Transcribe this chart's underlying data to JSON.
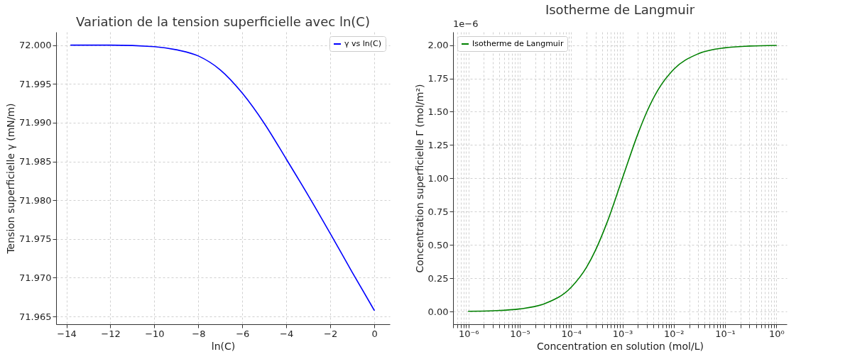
{
  "chart_data": [
    {
      "type": "line",
      "title": "Variation de la tension superficielle avec ln(C)",
      "xlabel": "ln(C)",
      "ylabel": "Tension superficielle γ (mN/m)",
      "series": [
        {
          "name": "γ vs ln(C)",
          "color": "#0000ff",
          "x": [
            -13.8,
            -12,
            -10,
            -9,
            -8,
            -7,
            -6,
            -5,
            -4,
            -3,
            -2,
            -1,
            0
          ],
          "values": [
            72.0,
            72.0,
            71.9998,
            71.9994,
            71.9986,
            71.9968,
            71.9938,
            71.9899,
            71.9853,
            71.9806,
            71.9757,
            71.9707,
            71.9658
          ]
        }
      ],
      "xlim": [
        -14.47,
        0.71
      ],
      "ylim": [
        71.964,
        72.0017
      ],
      "xticks": [
        {
          "value": -14,
          "label": "−14"
        },
        {
          "value": -12,
          "label": "−12"
        },
        {
          "value": -10,
          "label": "−10"
        },
        {
          "value": -8,
          "label": "−8"
        },
        {
          "value": -6,
          "label": "−6"
        },
        {
          "value": -4,
          "label": "−4"
        },
        {
          "value": -2,
          "label": "−2"
        },
        0
      ],
      "yticks": [
        {
          "value": 71.965,
          "label": "71.965"
        },
        {
          "value": 71.97,
          "label": "71.970"
        },
        {
          "value": 71.975,
          "label": "71.975"
        },
        {
          "value": 71.98,
          "label": "71.980"
        },
        {
          "value": 71.985,
          "label": "71.985"
        },
        {
          "value": 71.99,
          "label": "71.990"
        },
        {
          "value": 71.995,
          "label": "71.995"
        },
        {
          "value": 72.0,
          "label": "72.000"
        }
      ],
      "grid": true,
      "legend": "top right",
      "line_style": "solid"
    },
    {
      "type": "line",
      "title": "Isotherme de Langmuir",
      "xlabel": "Concentration en solution (mol/L)",
      "ylabel": "Concentration superficielle Γ (mol/m²)",
      "annotations": [
        "1e−6"
      ],
      "series": [
        {
          "name": "Isotherme de Langmuir",
          "color": "#008000",
          "x": [
            1e-06,
            3e-06,
            1e-05,
            3e-05,
            0.0001,
            0.0002,
            0.0003,
            0.0005,
            0.001,
            0.002,
            0.003,
            0.005,
            0.01,
            0.03,
            0.1,
            0.3,
            1
          ],
          "values": [
            0.002,
            0.006,
            0.02,
            0.058,
            0.182,
            0.333,
            0.462,
            0.667,
            1.0,
            1.333,
            1.5,
            1.667,
            1.818,
            1.935,
            1.98,
            1.993,
            1.998
          ]
        }
      ],
      "log": "x",
      "xlim": [
        5e-07,
        1.6
      ],
      "ylim": [
        -0.095,
        2.099
      ],
      "xticks": [
        {
          "value": 1e-06,
          "label": "10⁻⁶"
        },
        {
          "value": 1e-05,
          "label": "10⁻⁵"
        },
        {
          "value": 0.0001,
          "label": "10⁻⁴"
        },
        {
          "value": 0.001,
          "label": "10⁻³"
        },
        {
          "value": 0.01,
          "label": "10⁻²"
        },
        {
          "value": 0.1,
          "label": "10⁻¹"
        },
        {
          "value": 1,
          "label": "10⁰"
        },
        {
          "value": 5e-07,
          "label": null
        },
        {
          "value": 6e-07,
          "label": null
        },
        {
          "value": 7e-07,
          "label": null
        },
        {
          "value": 8e-07,
          "label": null
        },
        {
          "value": 9e-07,
          "label": null
        },
        {
          "value": 2e-06,
          "label": null
        },
        {
          "value": 3e-06,
          "label": null
        },
        {
          "value": 4e-06,
          "label": null
        },
        {
          "value": 5e-06,
          "label": null
        },
        {
          "value": 6e-06,
          "label": null
        },
        {
          "value": 7e-06,
          "label": null
        },
        {
          "value": 8e-06,
          "label": null
        },
        {
          "value": 9e-06,
          "label": null
        },
        {
          "value": 2e-05,
          "label": null
        },
        {
          "value": 3e-05,
          "label": null
        },
        {
          "value": 4e-05,
          "label": null
        },
        {
          "value": 5e-05,
          "label": null
        },
        {
          "value": 6e-05,
          "label": null
        },
        {
          "value": 7e-05,
          "label": null
        },
        {
          "value": 8e-05,
          "label": null
        },
        {
          "value": 9e-05,
          "label": null
        },
        {
          "value": 0.0002,
          "label": null
        },
        {
          "value": 0.0003,
          "label": null
        },
        {
          "value": 0.0004,
          "label": null
        },
        {
          "value": 0.0005,
          "label": null
        },
        {
          "value": 0.0006,
          "label": null
        },
        {
          "value": 0.0007,
          "label": null
        },
        {
          "value": 0.0008,
          "label": null
        },
        {
          "value": 0.0009,
          "label": null
        },
        {
          "value": 0.002,
          "label": null
        },
        {
          "value": 0.003,
          "label": null
        },
        {
          "value": 0.004,
          "label": null
        },
        {
          "value": 0.005,
          "label": null
        },
        {
          "value": 0.006,
          "label": null
        },
        {
          "value": 0.007,
          "label": null
        },
        {
          "value": 0.008,
          "label": null
        },
        {
          "value": 0.009,
          "label": null
        },
        {
          "value": 0.02,
          "label": null
        },
        {
          "value": 0.03,
          "label": null
        },
        {
          "value": 0.04,
          "label": null
        },
        {
          "value": 0.05,
          "label": null
        },
        {
          "value": 0.06,
          "label": null
        },
        {
          "value": 0.07,
          "label": null
        },
        {
          "value": 0.08,
          "label": null
        },
        {
          "value": 0.09,
          "label": null
        },
        {
          "value": 0.2,
          "label": null
        },
        {
          "value": 0.3,
          "label": null
        },
        {
          "value": 0.4,
          "label": null
        },
        {
          "value": 0.5,
          "label": null
        },
        {
          "value": 0.6,
          "label": null
        },
        {
          "value": 0.7,
          "label": null
        },
        {
          "value": 0.8,
          "label": null
        },
        {
          "value": 0.9,
          "label": null
        }
      ],
      "yticks": [
        {
          "value": 0,
          "label": "0.00"
        },
        {
          "value": 0.25,
          "label": "0.25"
        },
        {
          "value": 0.5,
          "label": "0.50"
        },
        {
          "value": 0.75,
          "label": "0.75"
        },
        {
          "value": 1,
          "label": "1.00"
        },
        {
          "value": 1.25,
          "label": "1.25"
        },
        {
          "value": 1.5,
          "label": "1.50"
        },
        {
          "value": 1.75,
          "label": "1.75"
        },
        {
          "value": 2,
          "label": "2.00"
        }
      ],
      "grid": true,
      "legend": "top left",
      "line_style": "solid"
    }
  ]
}
